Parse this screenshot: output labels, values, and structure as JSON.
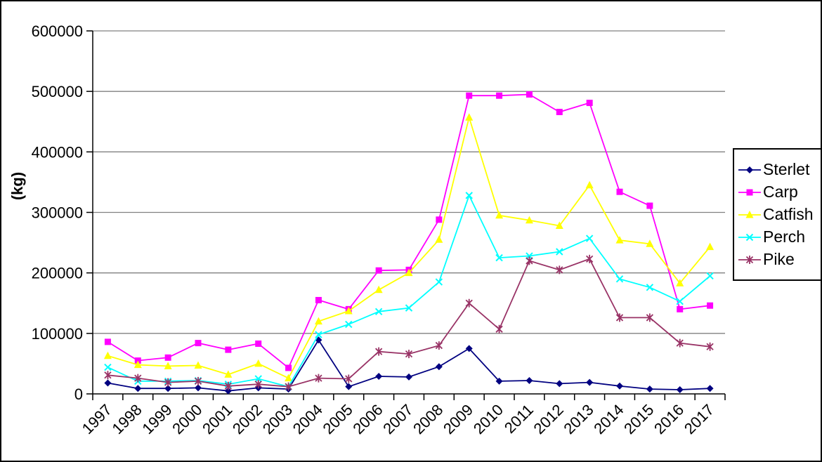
{
  "chart_data": {
    "type": "line",
    "title": "",
    "ylabel": "(kg)",
    "xlabel": "",
    "ylim": [
      0,
      600000
    ],
    "yticks": [
      0,
      100000,
      200000,
      300000,
      400000,
      500000,
      600000
    ],
    "grid": true,
    "legend_position": "right",
    "categories": [
      "1997",
      "1998",
      "1999",
      "2000",
      "2001",
      "2002",
      "2003",
      "2004",
      "2005",
      "2006",
      "2007",
      "2008",
      "2009",
      "2010",
      "2011",
      "2012",
      "2013",
      "2014",
      "2015",
      "2016",
      "2017"
    ],
    "series": [
      {
        "name": "Sterlet",
        "marker": "diamond",
        "color": "#000080",
        "values": [
          18000,
          9000,
          9000,
          10000,
          5000,
          10000,
          8000,
          89000,
          12000,
          29000,
          28000,
          45000,
          75000,
          21000,
          22000,
          17000,
          19000,
          13000,
          8000,
          7000,
          9000
        ]
      },
      {
        "name": "Carp",
        "marker": "square",
        "color": "#FF00FF",
        "values": [
          86000,
          55000,
          60000,
          84000,
          73000,
          83000,
          43000,
          155000,
          140000,
          204000,
          205000,
          288000,
          493000,
          493000,
          495000,
          466000,
          481000,
          334000,
          311000,
          140000,
          146000
        ]
      },
      {
        "name": "Catfish",
        "marker": "triangle",
        "color": "#FFFF00",
        "values": [
          63000,
          48000,
          46000,
          47000,
          32000,
          50000,
          26000,
          120000,
          137000,
          172000,
          200000,
          255000,
          457000,
          295000,
          287000,
          278000,
          345000,
          254000,
          248000,
          183000,
          243000
        ]
      },
      {
        "name": "Perch",
        "marker": "x",
        "color": "#00FFFF",
        "values": [
          44000,
          21000,
          21000,
          22000,
          16000,
          25000,
          12000,
          98000,
          115000,
          136000,
          142000,
          185000,
          328000,
          225000,
          228000,
          235000,
          257000,
          190000,
          176000,
          153000,
          195000
        ]
      },
      {
        "name": "Pike",
        "marker": "asterisk",
        "color": "#993366",
        "values": [
          31000,
          26000,
          19000,
          21000,
          13000,
          16000,
          12000,
          26000,
          25000,
          70000,
          66000,
          80000,
          150000,
          107000,
          220000,
          205000,
          223000,
          126000,
          126000,
          84000,
          78000
        ]
      }
    ]
  },
  "colors": {
    "background": "#FFFFFF",
    "frame_border": "#000000",
    "axis": "#000000",
    "gridline": "#808080",
    "text": "#000000"
  }
}
